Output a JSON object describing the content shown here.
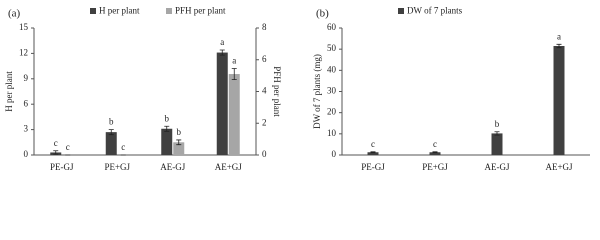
{
  "chart_data": [
    {
      "type": "bar",
      "title": "(a)",
      "categories": [
        "PE-GJ",
        "PE+GJ",
        "AE-GJ",
        "AE+GJ"
      ],
      "series": [
        {
          "name": "H per plant",
          "color": "#404040",
          "values": [
            0.3,
            2.7,
            3.1,
            12.1
          ],
          "errors": [
            0.2,
            0.3,
            0.3,
            0.3
          ],
          "letters": [
            "c",
            "b",
            "b",
            "a"
          ]
        },
        {
          "name": "PFH per plant",
          "color": "#a6a6a6",
          "axis": "y2",
          "values": [
            0,
            0,
            0.8,
            5.1
          ],
          "errors": [
            0,
            0,
            0.15,
            0.35
          ],
          "letters": [
            "c",
            "c",
            "b",
            "a"
          ]
        }
      ],
      "ylabel": "H per plant",
      "ylim": [
        0,
        15
      ],
      "yticks": [
        0,
        3,
        6,
        9,
        12,
        15
      ],
      "y2label": "PFH per plant",
      "y2lim": [
        0,
        8
      ],
      "y2ticks": [
        0,
        2,
        4,
        6,
        8
      ],
      "legend": "top",
      "grid": false
    },
    {
      "type": "bar",
      "title": "(b)",
      "categories": [
        "PE-GJ",
        "PE+GJ",
        "AE-GJ",
        "AE+GJ"
      ],
      "series": [
        {
          "name": "DW of 7 plants",
          "color": "#404040",
          "values": [
            1.3,
            1.3,
            10.2,
            51.5
          ],
          "errors": [
            0.2,
            0.2,
            0.8,
            0.8
          ],
          "letters": [
            "c",
            "c",
            "b",
            "a"
          ]
        }
      ],
      "ylabel": "DW of 7 plants (mg)",
      "ylim": [
        0,
        60
      ],
      "yticks": [
        0,
        10,
        20,
        30,
        40,
        50,
        60
      ],
      "legend": "top",
      "grid": false
    }
  ]
}
